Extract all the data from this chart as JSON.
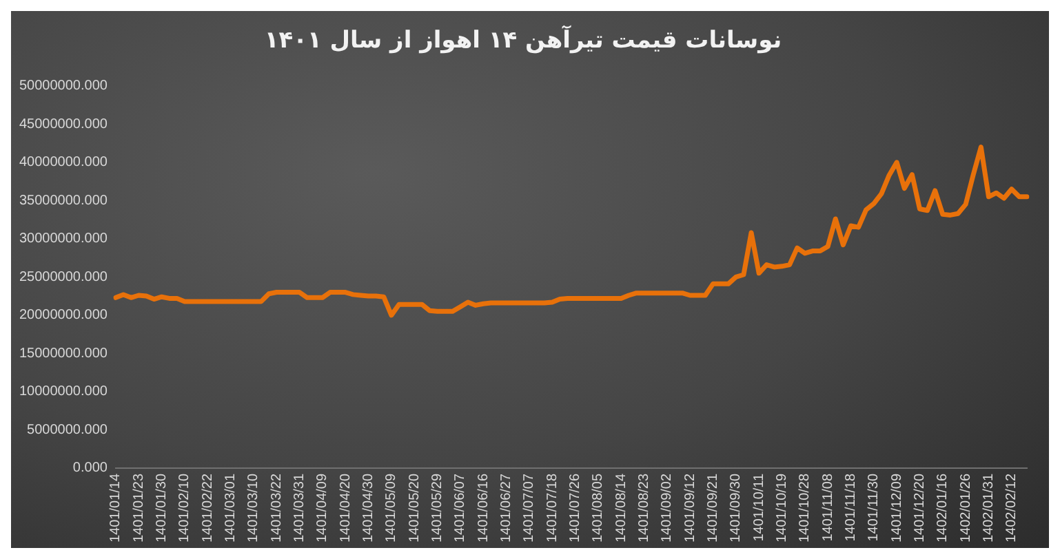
{
  "chart_data": {
    "type": "line",
    "title": "نوسانات قیمت تیرآهن ۱۴ اهواز از سال ۱۴۰۱",
    "categories": [
      "1401/01/14",
      null,
      null,
      "1401/01/23",
      null,
      null,
      "1401/01/30",
      null,
      null,
      "1401/02/10",
      null,
      null,
      "1401/02/22",
      null,
      null,
      "1401/03/01",
      null,
      null,
      "1401/03/10",
      null,
      null,
      "1401/03/22",
      null,
      null,
      "1401/03/31",
      null,
      null,
      "1401/04/09",
      null,
      null,
      "1401/04/20",
      null,
      null,
      "1401/04/30",
      null,
      null,
      "1401/05/09",
      null,
      null,
      "1401/05/20",
      null,
      null,
      "1401/05/29",
      null,
      null,
      "1401/06/07",
      null,
      null,
      "1401/06/16",
      null,
      null,
      "1401/06/27",
      null,
      null,
      "1401/07/07",
      null,
      null,
      "1401/07/18",
      null,
      null,
      "1401/07/26",
      null,
      null,
      "1401/08/05",
      null,
      null,
      "1401/08/14",
      null,
      null,
      "1401/08/23",
      null,
      null,
      "1401/09/02",
      null,
      null,
      "1401/09/12",
      null,
      null,
      "1401/09/21",
      null,
      null,
      "1401/09/30",
      null,
      null,
      "1401/10/11",
      null,
      null,
      "1401/10/19",
      null,
      null,
      "1401/10/28",
      null,
      null,
      "1401/11/08",
      null,
      null,
      "1401/11/18",
      null,
      null,
      "1401/11/30",
      null,
      null,
      "1401/12/09",
      null,
      null,
      "1401/12/20",
      null,
      null,
      "1402/01/16",
      null,
      null,
      "1402/01/26",
      null,
      null,
      "1402/01/31",
      null,
      null,
      "1402/02/12",
      null,
      null
    ],
    "series": [
      {
        "color": "#e8710a",
        "values": [
          22300000,
          22700000,
          22300000,
          22600000,
          22500000,
          22100000,
          22400000,
          22200000,
          22200000,
          21800000,
          21800000,
          21800000,
          21800000,
          21800000,
          21800000,
          21800000,
          21800000,
          21800000,
          21800000,
          21800000,
          22800000,
          23000000,
          23000000,
          23000000,
          23000000,
          22300000,
          22300000,
          22300000,
          23000000,
          23000000,
          23000000,
          22700000,
          22600000,
          22500000,
          22500000,
          22400000,
          20000000,
          21400000,
          21400000,
          21400000,
          21400000,
          20600000,
          20500000,
          20500000,
          20500000,
          21100000,
          21700000,
          21300000,
          21500000,
          21600000,
          21600000,
          21600000,
          21600000,
          21600000,
          21600000,
          21600000,
          21600000,
          21700000,
          22100000,
          22200000,
          22200000,
          22200000,
          22200000,
          22200000,
          22200000,
          22200000,
          22200000,
          22600000,
          22900000,
          22900000,
          22900000,
          22900000,
          22900000,
          22900000,
          22900000,
          22600000,
          22600000,
          22600000,
          24100000,
          24100000,
          24100000,
          25000000,
          25300000,
          30800000,
          25500000,
          26600000,
          26300000,
          26400000,
          26600000,
          28800000,
          28100000,
          28400000,
          28400000,
          29000000,
          32600000,
          29200000,
          31700000,
          31500000,
          33800000,
          34600000,
          35900000,
          38300000,
          40000000,
          36600000,
          38400000,
          33900000,
          33700000,
          36300000,
          33200000,
          33100000,
          33300000,
          34500000,
          38400000,
          42000000,
          35500000,
          36000000,
          35300000,
          36500000,
          35500000,
          35500000
        ]
      }
    ],
    "ylim": [
      0,
      50000000
    ],
    "yticks": [
      {
        "value": 0,
        "label": "0.000"
      },
      {
        "value": 5000000,
        "label": "5000000.000"
      },
      {
        "value": 10000000,
        "label": "10000000.000"
      },
      {
        "value": 15000000,
        "label": "15000000.000"
      },
      {
        "value": 20000000,
        "label": "20000000.000"
      },
      {
        "value": 25000000,
        "label": "25000000.000"
      },
      {
        "value": 30000000,
        "label": "30000000.000"
      },
      {
        "value": 35000000,
        "label": "35000000.000"
      },
      {
        "value": 40000000,
        "label": "40000000.000"
      },
      {
        "value": 45000000,
        "label": "45000000.000"
      },
      {
        "value": 50000000,
        "label": "50000000.000"
      }
    ],
    "grid": false,
    "legend": false,
    "marker": "none",
    "line_style": "solid"
  }
}
